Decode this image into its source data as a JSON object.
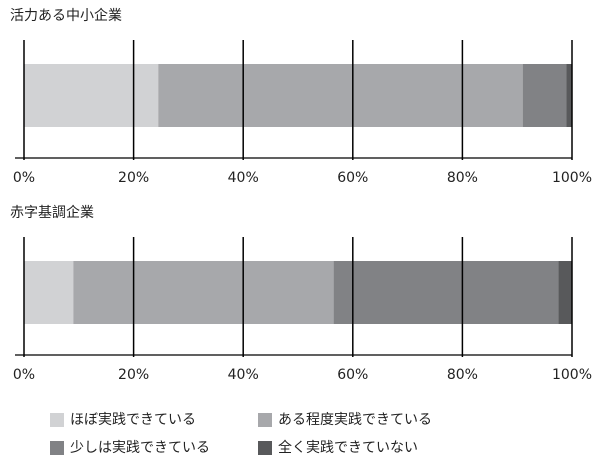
{
  "chart_data": [
    {
      "type": "bar",
      "orientation": "horizontal",
      "stacked": true,
      "title": "活力ある中小企業",
      "series": [
        {
          "values": [
            24.5
          ]
        },
        {
          "values": [
            66.5
          ]
        },
        {
          "values": [
            8
          ]
        },
        {
          "values": [
            1
          ]
        }
      ],
      "xlim": [
        0,
        100
      ],
      "xticks": [
        {
          "value": 0,
          "label": "0%"
        },
        {
          "value": 20,
          "label": "20%"
        },
        {
          "value": 40,
          "label": "40%"
        },
        {
          "value": 60,
          "label": "60%"
        },
        {
          "value": 80,
          "label": "80%"
        },
        {
          "value": 100,
          "label": "100%"
        }
      ],
      "grid": true
    },
    {
      "type": "bar",
      "orientation": "horizontal",
      "stacked": true,
      "title": "赤字基調企業",
      "series": [
        {
          "values": [
            9
          ]
        },
        {
          "values": [
            47.5
          ]
        },
        {
          "values": [
            41
          ]
        },
        {
          "values": [
            2.5
          ]
        }
      ],
      "xlim": [
        0,
        100
      ],
      "xticks": [
        {
          "value": 0,
          "label": "0%"
        },
        {
          "value": 20,
          "label": "20%"
        },
        {
          "value": 40,
          "label": "40%"
        },
        {
          "value": 60,
          "label": "60%"
        },
        {
          "value": 80,
          "label": "80%"
        },
        {
          "value": 100,
          "label": "100%"
        }
      ],
      "grid": true
    }
  ],
  "legend": {
    "position": "bottom",
    "items": [
      {
        "name": "ほぼ実践できている",
        "color": "#d1d2d4"
      },
      {
        "name": "ある程度実践できている",
        "color": "#a7a8ab"
      },
      {
        "name": "少しは実践できている",
        "color": "#818285"
      },
      {
        "name": "全く実践できていない",
        "color": "#58595b"
      }
    ]
  }
}
